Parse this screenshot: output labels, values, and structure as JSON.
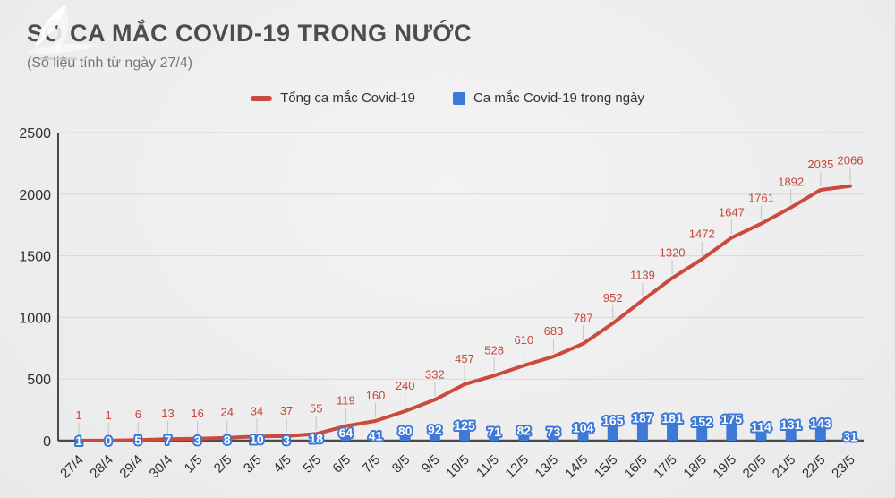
{
  "header": {
    "title": "SỐ CA MẮC COVID-19 TRONG NƯỚC",
    "subtitle": "(Số liệu tính từ ngày 27/4)"
  },
  "legend": {
    "total_label": "Tổng ca mắc Covid-19",
    "daily_label": "Ca mắc Covid-19 trong ngày"
  },
  "colors": {
    "line_red": "#cb4a3e",
    "red_label": "#c4473b",
    "bar_blue": "#3e79d8",
    "grid": "#d8d8d8",
    "axis": "#4a4a4a",
    "tick_text": "#2e2e2e",
    "stem": "#c4c4c4",
    "background": "#eeeeef"
  },
  "chart_data": {
    "type": "combo",
    "title": "SỐ CA MẮC COVID-19 TRONG NƯỚC",
    "subtitle": "(Số liệu tính từ ngày 27/4)",
    "categories": [
      "27/4",
      "28/4",
      "29/4",
      "30/4",
      "1/5",
      "2/5",
      "3/5",
      "4/5",
      "5/5",
      "6/5",
      "7/5",
      "8/5",
      "9/5",
      "10/5",
      "11/5",
      "12/5",
      "13/5",
      "14/5",
      "15/5",
      "16/5",
      "17/5",
      "18/5",
      "19/5",
      "20/5",
      "21/5",
      "22/5",
      "23/5"
    ],
    "series": [
      {
        "name": "Tổng ca mắc Covid-19",
        "type": "line",
        "color": "#cb4a3e",
        "values": [
          1,
          1,
          6,
          13,
          16,
          24,
          34,
          37,
          55,
          119,
          160,
          240,
          332,
          457,
          528,
          610,
          683,
          787,
          952,
          1139,
          1320,
          1472,
          1647,
          1761,
          1892,
          2035,
          2066
        ]
      },
      {
        "name": "Ca mắc Covid-19 trong ngày",
        "type": "bar",
        "color": "#3e79d8",
        "values": [
          1,
          0,
          5,
          7,
          3,
          8,
          10,
          3,
          18,
          64,
          41,
          80,
          92,
          125,
          71,
          82,
          73,
          104,
          165,
          187,
          181,
          152,
          175,
          114,
          131,
          143,
          31
        ]
      }
    ],
    "xlabel": "",
    "ylabel": "",
    "ylim": [
      0,
      2500
    ],
    "yticks": [
      0,
      500,
      1000,
      1500,
      2000,
      2500
    ],
    "grid": true,
    "legend_position": "top",
    "annotations": "every point labeled with its value"
  }
}
